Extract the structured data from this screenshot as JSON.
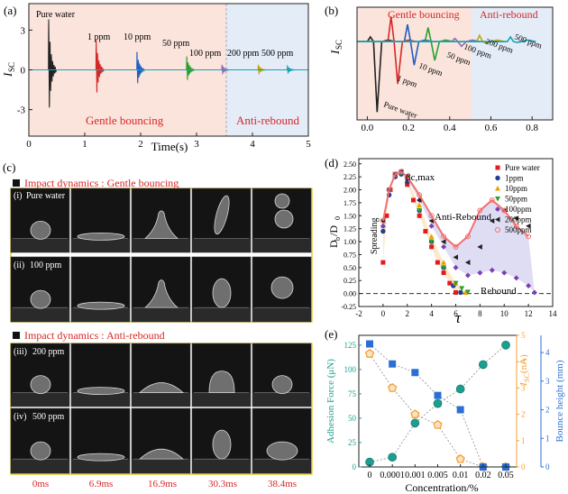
{
  "panels": {
    "a": {
      "label": "(a)",
      "ylabel": "I",
      "ylabel_sub": "SC",
      "xlabel": "Time(s)",
      "xlim": [
        0,
        5
      ],
      "ylim": [
        -5,
        5
      ],
      "xticks": [
        "0",
        "1",
        "2",
        "3",
        "4",
        "5"
      ],
      "yticks": [
        "3",
        "0",
        "-3"
      ],
      "region_labels": [
        "Gentle bouncing",
        "Anti-rebound"
      ],
      "peak_labels": [
        "Pure water",
        "1 ppm",
        "10 ppm",
        "50 ppm",
        "100 ppm",
        "200 ppm",
        "500 ppm"
      ],
      "colors": {
        "gentle_bg": "#fbe4dc",
        "anti_bg": "#e4ecf8",
        "region_text": "#d62728"
      }
    },
    "b": {
      "label": "(b)",
      "ylabel": "I",
      "ylabel_sub": "SC",
      "xlim": [
        -0.05,
        0.9
      ],
      "xticks": [
        "0.0",
        "0.2",
        "0.4",
        "0.6",
        "0.8"
      ],
      "region_labels": [
        "Gentle bouncing",
        "Anti-rebound"
      ],
      "peak_labels": [
        "Pure water",
        "1 ppm",
        "10 ppm",
        "50 ppm",
        "100 ppm",
        "200 ppm",
        "500 ppm"
      ]
    },
    "c": {
      "label": "(c)",
      "section_titles": [
        "Impact dynamics : Gentle bouncing",
        "Impact dynamics : Anti-rebound"
      ],
      "rows": [
        {
          "tag": "(i)",
          "name": "Pure water"
        },
        {
          "tag": "(ii)",
          "name": "100 ppm"
        },
        {
          "tag": "(iii)",
          "name": "200 ppm"
        },
        {
          "tag": "(iv)",
          "name": "500 ppm"
        }
      ],
      "times": [
        "0ms",
        "6.9ms",
        "16.9ms",
        "30.3ms",
        "38.4ms"
      ],
      "colors": {
        "title": "#d62728",
        "border": "#e3c400",
        "time": "#d62728"
      }
    },
    "d": {
      "label": "(d)",
      "ylabel": "D",
      "ylabel_sub_b": "b",
      "ylabel_sub_0": "0",
      "ylabel_div": "/D",
      "xlabel": "τ",
      "xlim": [
        -2,
        14
      ],
      "ylim": [
        -0.25,
        2.6
      ],
      "xticks": [
        "-2",
        "0",
        "2",
        "4",
        "6",
        "8",
        "10",
        "12",
        "14"
      ],
      "yticks": [
        "-0.25",
        "0.00",
        "0.25",
        "0.50",
        "0.75",
        "1.00",
        "1.25",
        "1.50",
        "1.75",
        "2.00",
        "2.25",
        "2.50"
      ],
      "annotations": {
        "max": "βc,max",
        "anti": "Anti-Rebound",
        "rebound": "Rebound",
        "spreading": "Spreading"
      },
      "legend": [
        "Pure water",
        "1ppm",
        "10ppm",
        "50ppm",
        "100ppm",
        "200ppm",
        "500ppm"
      ]
    },
    "e": {
      "label": "(e)",
      "xlabel": "Concentration/%",
      "y1label": "Adhesion Force (μN)",
      "y2label": "I",
      "y2label_sub": "SC",
      "y2label_unit": " (nA)",
      "y3label": "Bounce height (mm)",
      "categories": [
        "0",
        "0.0001",
        "0.001",
        "0.005",
        "0.01",
        "0.02",
        "0.05"
      ],
      "y1ticks": [
        "0",
        "25",
        "50",
        "75",
        "100",
        "125"
      ],
      "y2ticks": [
        "0",
        "1",
        "2",
        "3",
        "4",
        "5"
      ],
      "y3ticks": [
        "0",
        "1",
        "2",
        "3",
        "4"
      ]
    }
  },
  "chart_data": [
    {
      "id": "a",
      "type": "line",
      "title": "",
      "xlabel": "Time(s)",
      "ylabel": "ISC",
      "xlim": [
        0,
        5
      ],
      "ylim": [
        -5,
        5
      ],
      "series": [
        {
          "name": "Pure water",
          "color": "#222222",
          "t0": 0.35,
          "amp": 4.5
        },
        {
          "name": "1 ppm",
          "color": "#d62728",
          "t0": 1.2,
          "amp": 2.7
        },
        {
          "name": "10 ppm",
          "color": "#1f5fbf",
          "t0": 1.93,
          "amp": 1.6
        },
        {
          "name": "50 ppm",
          "color": "#2ca02c",
          "t0": 2.82,
          "amp": 1.2
        },
        {
          "name": "100 ppm",
          "color": "#9467bd",
          "t0": 3.45,
          "amp": 0.45
        },
        {
          "name": "200 ppm",
          "color": "#c8a200",
          "t0": 4.1,
          "amp": 0.45
        },
        {
          "name": "500 ppm",
          "color": "#17a2b8",
          "t0": 4.62,
          "amp": 0.35
        }
      ]
    },
    {
      "id": "b",
      "type": "line",
      "xlim": [
        -0.05,
        0.9
      ],
      "series": [
        {
          "name": "Pure water",
          "color": "#222222",
          "t0": 0.0,
          "pos": 0.3,
          "neg": -4.5
        },
        {
          "name": "1 ppm",
          "color": "#d62728",
          "t0": 0.1,
          "pos": 1.6,
          "neg": -2.7
        },
        {
          "name": "10 ppm",
          "color": "#1f5fbf",
          "t0": 0.18,
          "pos": 1.1,
          "neg": -1.5
        },
        {
          "name": "50 ppm",
          "color": "#2ca02c",
          "t0": 0.28,
          "pos": 0.9,
          "neg": -1.2
        },
        {
          "name": "100 ppm",
          "color": "#9467bd",
          "t0": 0.41,
          "pos": 0.2,
          "neg": -0.3
        },
        {
          "name": "200 ppm",
          "color": "#c8a200",
          "t0": 0.53,
          "pos": 0.4,
          "neg": -0.1
        },
        {
          "name": "500 ppm",
          "color": "#17a2b8",
          "t0": 0.68,
          "pos": 0.3,
          "neg": -0.05
        }
      ]
    },
    {
      "id": "d",
      "type": "scatter",
      "xlabel": "τ",
      "ylabel": "Db/D0",
      "xlim": [
        -2,
        14
      ],
      "ylim": [
        -0.25,
        2.6
      ],
      "series": [
        {
          "name": "Pure water",
          "color": "#e41a1c",
          "marker": "square",
          "x": [
            0,
            0.3,
            0.6,
            1,
            1.5,
            2,
            2.5,
            3,
            3.5,
            4,
            4.5,
            5,
            5.5,
            6
          ],
          "y": [
            0.6,
            1.5,
            2.0,
            2.3,
            2.35,
            2.1,
            1.8,
            1.5,
            1.2,
            0.9,
            0.6,
            0.4,
            0.2,
            0.02
          ]
        },
        {
          "name": "1ppm",
          "color": "#1f3f8f",
          "marker": "circle",
          "x": [
            0,
            0.5,
            1,
            1.5,
            2,
            3,
            4,
            5,
            5.8,
            6.4
          ],
          "y": [
            1.2,
            1.9,
            2.25,
            2.3,
            2.15,
            1.6,
            1.0,
            0.5,
            0.15,
            0.02
          ]
        },
        {
          "name": "10ppm",
          "color": "#e6a300",
          "marker": "triangle-up",
          "x": [
            0,
            0.5,
            1,
            1.5,
            2,
            3,
            4,
            5,
            6,
            6.8
          ],
          "y": [
            1.3,
            2.0,
            2.3,
            2.35,
            2.2,
            1.7,
            1.1,
            0.6,
            0.2,
            0.02
          ]
        },
        {
          "name": "50ppm",
          "color": "#2ca02c",
          "marker": "triangle-down",
          "x": [
            0,
            0.5,
            1,
            1.5,
            2,
            3,
            4,
            5,
            6,
            6.5,
            7
          ],
          "y": [
            1.4,
            2.0,
            2.3,
            2.32,
            2.2,
            1.6,
            1.0,
            0.5,
            0.2,
            0.1,
            0.03
          ]
        },
        {
          "name": "100ppm",
          "color": "#7b3fb0",
          "marker": "diamond",
          "x": [
            0,
            0.5,
            1,
            1.5,
            2,
            3,
            4,
            5,
            6,
            7,
            8,
            9,
            10,
            11,
            12,
            12.5
          ],
          "y": [
            1.3,
            2.0,
            2.3,
            2.35,
            2.2,
            1.8,
            1.3,
            0.9,
            0.5,
            0.35,
            0.4,
            0.45,
            0.4,
            0.3,
            0.15,
            0.02
          ]
        },
        {
          "name": "200ppm",
          "color": "#222222",
          "marker": "triangle-left",
          "x": [
            0,
            0.5,
            1,
            1.5,
            2,
            3,
            4,
            5,
            6,
            7,
            8,
            9,
            10,
            11,
            12
          ],
          "y": [
            1.4,
            2.0,
            2.3,
            2.35,
            2.25,
            1.8,
            1.4,
            1.0,
            0.7,
            0.6,
            0.9,
            1.4,
            1.6,
            1.45,
            1.3
          ]
        },
        {
          "name": "500ppm",
          "color": "#f07070",
          "marker": "circle-open",
          "x": [
            0,
            0.5,
            1,
            1.5,
            2,
            3,
            4,
            5,
            6,
            7,
            8,
            9,
            10,
            11,
            12
          ],
          "y": [
            1.4,
            2.0,
            2.3,
            2.35,
            2.25,
            1.9,
            1.5,
            1.1,
            0.9,
            1.1,
            1.6,
            1.8,
            1.6,
            1.3,
            1.1
          ]
        }
      ]
    },
    {
      "id": "e",
      "type": "line",
      "xlabel": "Concentration/%",
      "categories": [
        "0",
        "0.0001",
        "0.001",
        "0.005",
        "0.01",
        "0.02",
        "0.05"
      ],
      "series": [
        {
          "name": "Adhesion Force (μN)",
          "axis": "left",
          "color": "#1a9f8f",
          "marker": "circle",
          "values": [
            5,
            10,
            45,
            65,
            80,
            105,
            125
          ]
        },
        {
          "name": "ISC (nA)",
          "axis": "right1",
          "color": "#f5a030",
          "marker": "pentagon",
          "values": [
            4.3,
            3.0,
            2.0,
            1.6,
            0.3,
            0.0,
            0.0
          ]
        },
        {
          "name": "Bounce height (mm)",
          "axis": "right2",
          "color": "#2b6fd6",
          "marker": "square",
          "values": [
            4.3,
            3.6,
            3.3,
            2.5,
            2.0,
            0.0,
            0.0
          ]
        }
      ],
      "y1lim": [
        0,
        135
      ],
      "y2lim": [
        0,
        5
      ],
      "y3lim": [
        0,
        4.6
      ]
    }
  ]
}
